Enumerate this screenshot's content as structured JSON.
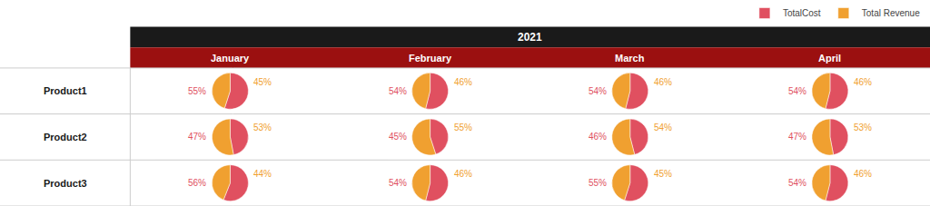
{
  "chart_data": {
    "type": "pie",
    "title": "2021",
    "categories": [
      "January",
      "February",
      "March",
      "April"
    ],
    "slices": [
      "TotalCost",
      "Total Revenue"
    ],
    "colors": [
      "#e05060",
      "#f0a030"
    ],
    "legend": "upper right",
    "data_labels": true,
    "series": [
      {
        "name": "Product1",
        "values": [
          [
            55,
            45
          ],
          [
            54,
            46
          ],
          [
            54,
            46
          ],
          [
            54,
            46
          ]
        ],
        "value_labels": [
          [
            "55%",
            "45%"
          ],
          [
            "54%",
            "46%"
          ],
          [
            "54%",
            "46%"
          ],
          [
            "54%",
            "46%"
          ]
        ]
      },
      {
        "name": "Product2",
        "values": [
          [
            47,
            53
          ],
          [
            45,
            55
          ],
          [
            46,
            54
          ],
          [
            47,
            53
          ]
        ],
        "value_labels": [
          [
            "47%",
            "53%"
          ],
          [
            "45%",
            "55%"
          ],
          [
            "46%",
            "54%"
          ],
          [
            "47%",
            "53%"
          ]
        ]
      },
      {
        "name": "Product3",
        "values": [
          [
            56,
            44
          ],
          [
            54,
            46
          ],
          [
            55,
            45
          ],
          [
            54,
            46
          ]
        ],
        "value_labels": [
          [
            "56%",
            "44%"
          ],
          [
            "54%",
            "46%"
          ],
          [
            "55%",
            "45%"
          ],
          [
            "54%",
            "46%"
          ]
        ]
      }
    ]
  }
}
